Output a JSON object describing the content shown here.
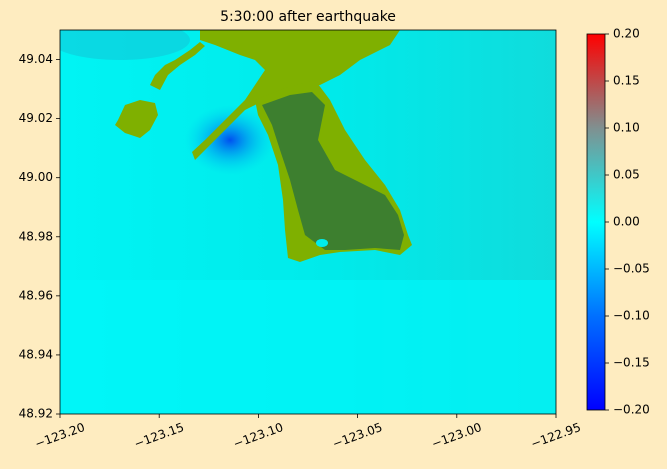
{
  "chart_data": {
    "type": "field-map",
    "title": "5:30:00 after earthquake",
    "xlim": [
      -123.2,
      -122.95
    ],
    "ylim": [
      48.92,
      49.05
    ],
    "xticks": [
      {
        "value": -123.2,
        "label": "−123.20"
      },
      {
        "value": -123.15,
        "label": "−123.15"
      },
      {
        "value": -123.1,
        "label": "−123.10"
      },
      {
        "value": -123.05,
        "label": "−123.05"
      },
      {
        "value": -123.0,
        "label": "−123.00"
      },
      {
        "value": -122.95,
        "label": "−122.95"
      }
    ],
    "yticks": [
      48.92,
      48.94,
      48.96,
      48.98,
      {
        "value": 49.0,
        "label": "49.00"
      },
      49.02,
      49.04
    ],
    "clim": [
      -0.2,
      0.2
    ],
    "cticks": [
      {
        "value": -0.2,
        "label": "−0.20"
      },
      {
        "value": -0.15,
        "label": "−0.15"
      },
      {
        "value": -0.1,
        "label": "−0.10"
      },
      {
        "value": -0.05,
        "label": "−0.05"
      },
      {
        "value": 0.0,
        "label": "0.00"
      },
      0.05,
      {
        "value": 0.1,
        "label": "0.10"
      },
      0.15,
      {
        "value": 0.2,
        "label": "0.20"
      }
    ]
  }
}
